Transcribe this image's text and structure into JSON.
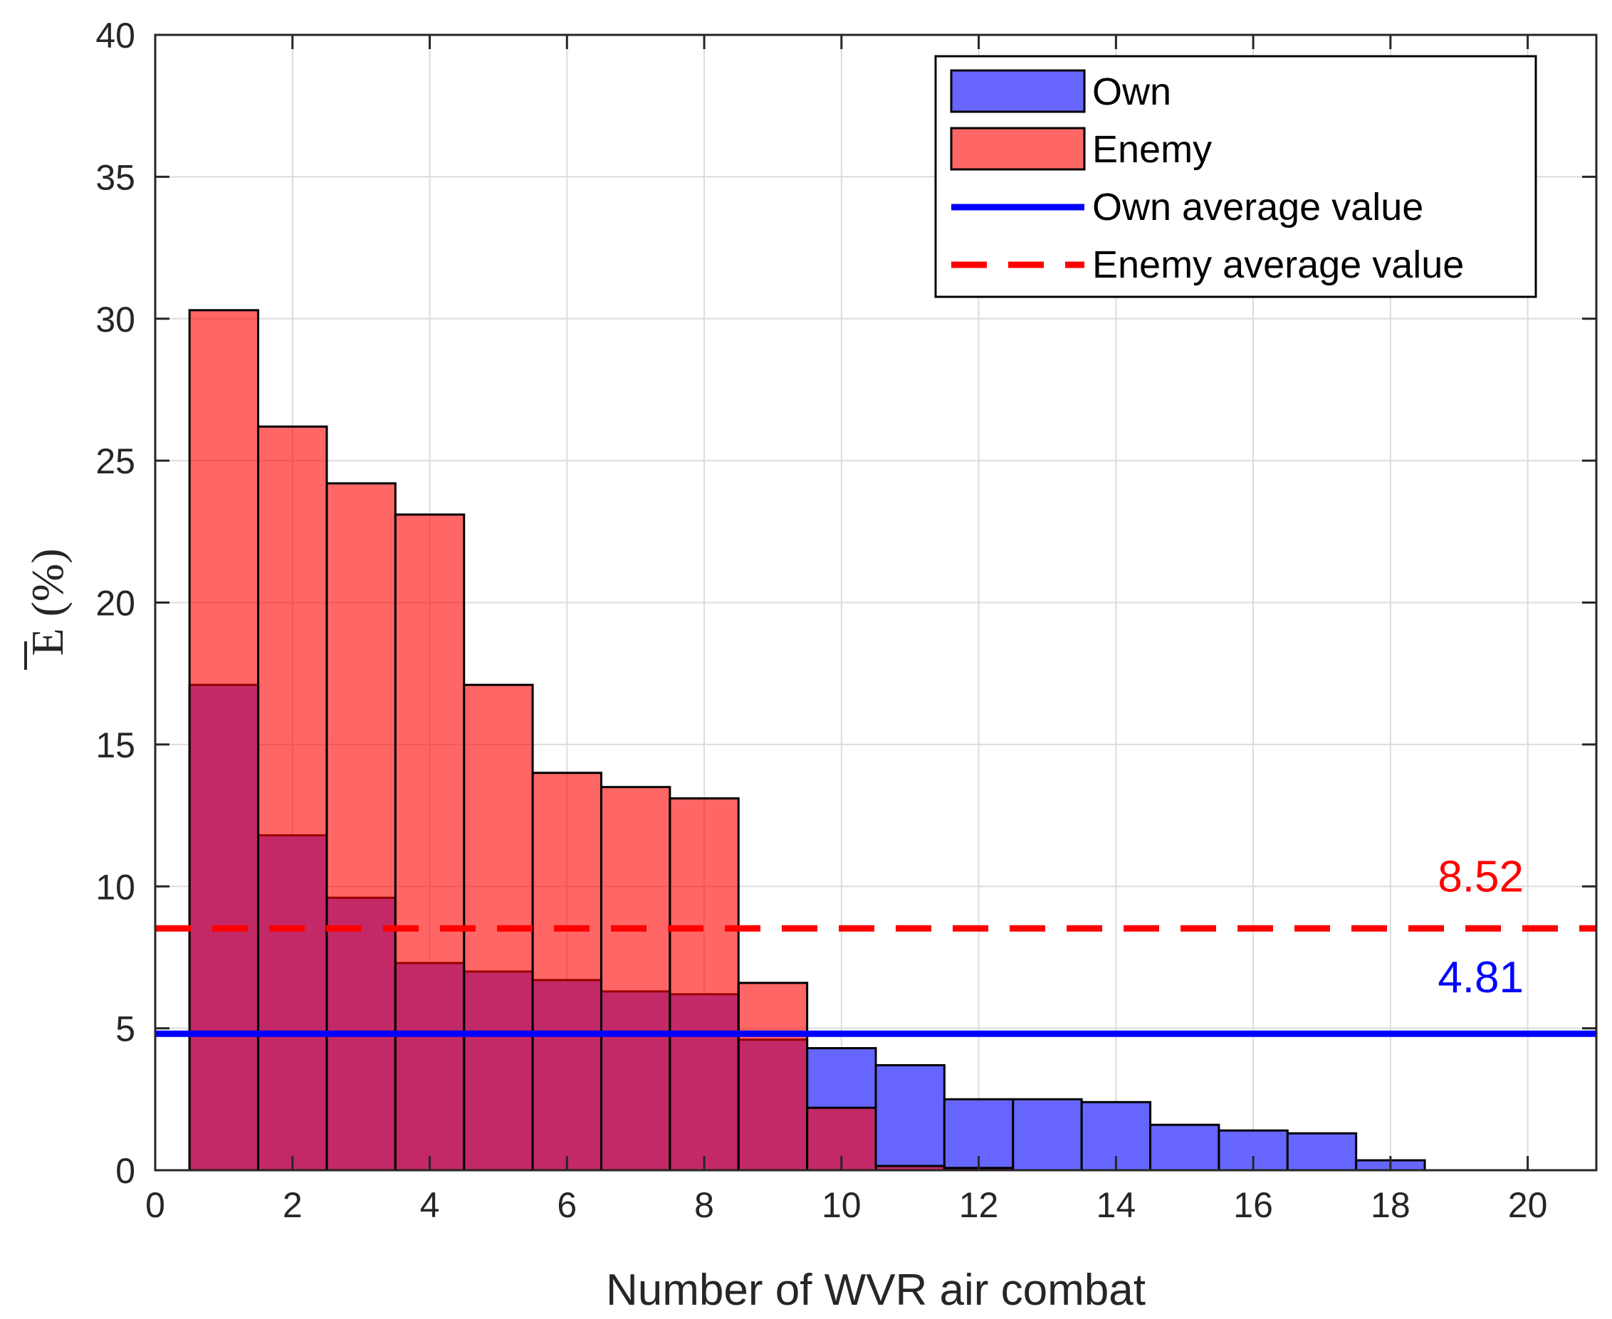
{
  "chart_data": {
    "type": "bar",
    "title": "",
    "xlabel": "Number of WVR air combat",
    "ylabel": "E (%)",
    "xlim": [
      0,
      21
    ],
    "ylim": [
      0,
      40
    ],
    "xticks": [
      0,
      2,
      4,
      6,
      8,
      10,
      12,
      14,
      16,
      18,
      20
    ],
    "yticks": [
      0,
      5,
      10,
      15,
      20,
      25,
      30,
      35,
      40
    ],
    "grid": true,
    "legend_position": "top-right",
    "bin_centers": [
      1,
      2,
      3,
      4,
      5,
      6,
      7,
      8,
      9,
      10,
      11,
      12,
      13,
      14,
      15,
      16,
      17,
      18,
      19,
      20
    ],
    "series": [
      {
        "name": "Own",
        "color": "#6666ff",
        "values": [
          17.1,
          11.8,
          9.6,
          7.3,
          7.0,
          6.7,
          6.3,
          6.2,
          4.6,
          4.3,
          3.7,
          2.5,
          2.5,
          2.4,
          1.6,
          1.4,
          1.3,
          0.35,
          0,
          0
        ]
      },
      {
        "name": "Enemy",
        "color": "#ff6666",
        "values": [
          30.3,
          26.2,
          24.2,
          23.1,
          17.1,
          14.0,
          13.5,
          13.1,
          6.6,
          2.2,
          0.15,
          0.08,
          0,
          0,
          0,
          0,
          0,
          0,
          0,
          0
        ]
      }
    ],
    "averages": [
      {
        "name": "Own average value",
        "value": 4.81,
        "label": "4.81",
        "color": "#0000ff",
        "style": "solid"
      },
      {
        "name": "Enemy average value",
        "value": 8.52,
        "label": "8.52",
        "color": "#ff0000",
        "style": "dashed"
      }
    ],
    "overlap_color": "#c42a62"
  }
}
